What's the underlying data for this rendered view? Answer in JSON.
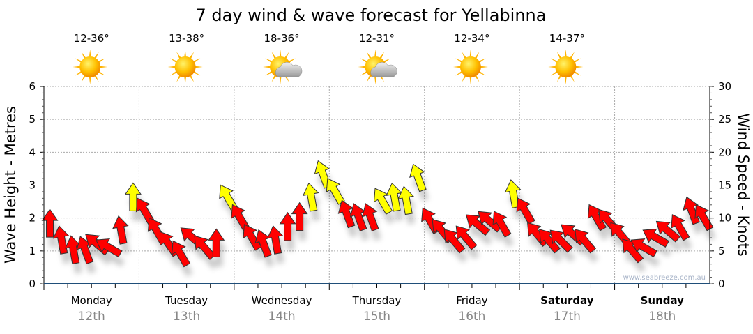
{
  "chart_data": {
    "type": "scatter",
    "title": "7 day wind & wave forecast for Yellabinna",
    "ylabel": "Wave Height - Metres",
    "y2label": "Wind Speed - Knots",
    "ylim": [
      0,
      6
    ],
    "y2lim": [
      0,
      30
    ],
    "yticks": [
      "0",
      "1",
      "2",
      "3",
      "4",
      "5",
      "6"
    ],
    "y2ticks": [
      "0",
      "5",
      "10",
      "15",
      "20",
      "25",
      "30"
    ],
    "grid": true,
    "watermark": "www.seabreeze.com.au",
    "days": [
      {
        "name": "Monday",
        "date": "12th",
        "bold": false,
        "temp": "12-36°",
        "icon": "sunny-icon"
      },
      {
        "name": "Tuesday",
        "date": "13th",
        "bold": false,
        "temp": "13-38°",
        "icon": "sunny-icon"
      },
      {
        "name": "Wednesday",
        "date": "14th",
        "bold": false,
        "temp": "18-36°",
        "icon": "partly-cloudy-icon"
      },
      {
        "name": "Thursday",
        "date": "15th",
        "bold": false,
        "temp": "12-31°",
        "icon": "partly-cloudy-icon"
      },
      {
        "name": "Friday",
        "date": "16th",
        "bold": false,
        "temp": "12-34°",
        "icon": "sunny-icon"
      },
      {
        "name": "Saturday",
        "date": "17th",
        "bold": true,
        "temp": "14-37°",
        "icon": "sunny-icon"
      },
      {
        "name": "Sunday",
        "date": "18th",
        "bold": true,
        "temp": "",
        "icon": ""
      }
    ],
    "wind_interval_hours": 3,
    "wind_knots": [
      9,
      6.5,
      5,
      5,
      6,
      5.5,
      8,
      13,
      11,
      8,
      6,
      4.5,
      7,
      5.5,
      6,
      13,
      10,
      7,
      6,
      6.5,
      8.5,
      10,
      13,
      16.5,
      14,
      10.5,
      10,
      10,
      12.5,
      13,
      12.5,
      16,
      9.5,
      8,
      6.5,
      7,
      9,
      9.5,
      9,
      13.5,
      11,
      7.5,
      6.5,
      6.5,
      7.5,
      6.5,
      10,
      9.5,
      7.5,
      5,
      5.5,
      7,
      8,
      8.5,
      11,
      10
    ],
    "wind_arrow_heading_deg": [
      0,
      -10,
      -10,
      -20,
      -50,
      -60,
      -10,
      0,
      -30,
      -30,
      -35,
      -30,
      -50,
      -40,
      0,
      -30,
      -30,
      -30,
      -20,
      -10,
      0,
      0,
      -10,
      -20,
      -30,
      -20,
      -20,
      -20,
      -30,
      -10,
      -10,
      -20,
      -30,
      -40,
      -40,
      -40,
      -50,
      -50,
      -30,
      -10,
      -30,
      -40,
      -40,
      -45,
      -50,
      -40,
      -30,
      -40,
      -40,
      -40,
      -60,
      -60,
      -50,
      -30,
      -20,
      -30
    ],
    "strong_wind_threshold_knots": 12,
    "colors": {
      "light_wind": "#ff0000",
      "strong_wind": "#ffff00",
      "axis": "#1f4e79",
      "grid": "#aaaaaa",
      "date": "#888888"
    }
  }
}
